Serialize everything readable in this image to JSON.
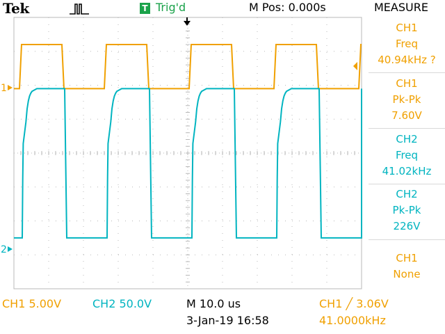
{
  "header": {
    "brand": "Tek",
    "acquire_icon": "pulse-icon",
    "trigger_badge": "T",
    "trigger_status": "Trig'd",
    "m_pos": "M Pos: 0.000s",
    "menu_title": "MEASURE"
  },
  "markers": {
    "ch1": "1",
    "ch2": "2"
  },
  "measurements": [
    {
      "source": "CH1",
      "type": "Freq",
      "value": "40.94kHz ?",
      "color": "#f0a000"
    },
    {
      "source": "CH1",
      "type": "Pk-Pk",
      "value": "7.60V",
      "color": "#f0a000"
    },
    {
      "source": "CH2",
      "type": "Freq",
      "value": "41.02kHz",
      "color": "#00b4c0"
    },
    {
      "source": "CH2",
      "type": "Pk-Pk",
      "value": "226V",
      "color": "#00b4c0"
    },
    {
      "source": "CH1",
      "type": "None",
      "value": "",
      "color": "#f0a000"
    }
  ],
  "footer": {
    "ch1_scale": "CH1  5.00V",
    "ch2_scale": "CH2  50.0V",
    "timebase": "M 10.0 us",
    "datetime": "3-Jan-19 16:58",
    "trigger_setting": "CH1  ╱  3.06V",
    "trigger_freq": "41.0000kHz"
  },
  "colors": {
    "ch1": "#f0a000",
    "ch2": "#00b4c0",
    "trigger": "#1aa24a",
    "grid": "#b8b8b8"
  },
  "waveforms": {
    "period_us": 24.4,
    "horizontal_divisions": 10,
    "ch1_high_div": 3.2,
    "ch1_low_div": 1.9,
    "ch2_high_div": 1.9,
    "ch2_low_div": -2.5
  }
}
